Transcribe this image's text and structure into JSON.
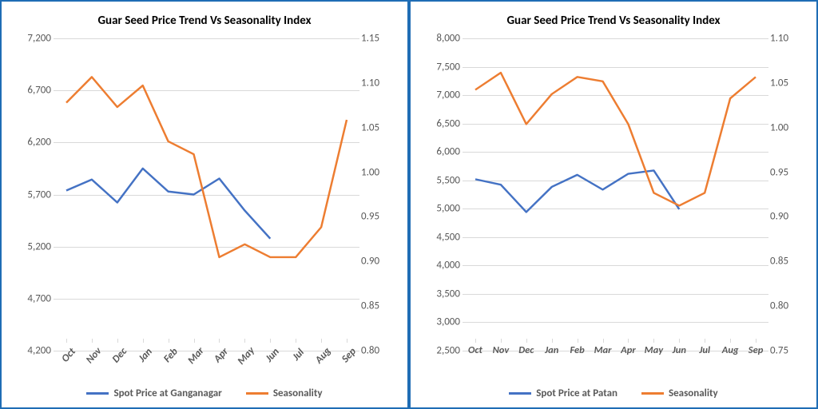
{
  "colors": {
    "price": "#4472c4",
    "seasonality": "#ed7d31",
    "grid": "#d9d9d9",
    "border": "#1f6db5",
    "text": "#595959"
  },
  "line_width": 2.5,
  "left": {
    "title": "Guar Seed Price Trend  Vs Seasonality Index",
    "categories": [
      "Oct",
      "Nov",
      "Dec",
      "Jan",
      "Feb",
      "Mar",
      "Apr",
      "May",
      "Jun",
      "Jul",
      "Aug",
      "Sep"
    ],
    "x_label_rotated": true,
    "y_left": {
      "min": 4200,
      "max": 7200,
      "step": 500,
      "fmt": "comma"
    },
    "y_right": {
      "min": 0.8,
      "max": 1.15,
      "step": 0.05,
      "fmt": "dec2"
    },
    "series": [
      {
        "name": "Spot Price at Ganganagar",
        "axis": "left",
        "color_key": "price",
        "values": [
          5680,
          5790,
          5560,
          5900,
          5670,
          5640,
          5800,
          5480,
          5200,
          null,
          null,
          null
        ]
      },
      {
        "name": "Seasonality",
        "axis": "right",
        "color_key": "seasonality",
        "values": [
          1.075,
          1.105,
          1.07,
          1.095,
          1.03,
          1.015,
          0.895,
          0.91,
          0.895,
          0.895,
          0.93,
          1.055
        ]
      }
    ]
  },
  "right": {
    "title": "Guar Seed Price Trend Vs Seasonality Index",
    "categories": [
      "Oct",
      "Nov",
      "Dec",
      "Jan",
      "Feb",
      "Mar",
      "Apr",
      "May",
      "Jun",
      "Jul",
      "Aug",
      "Sep"
    ],
    "x_label_rotated": false,
    "y_left": {
      "min": 2500,
      "max": 8000,
      "step": 500,
      "fmt": "comma"
    },
    "y_right": {
      "min": 0.75,
      "max": 1.1,
      "step": 0.05,
      "fmt": "dec2"
    },
    "series": [
      {
        "name": "Spot Price at Patan",
        "axis": "left",
        "color_key": "price",
        "values": [
          5420,
          5320,
          4820,
          5280,
          5500,
          5230,
          5520,
          5580,
          4870,
          null,
          null,
          null
        ]
      },
      {
        "name": "Seasonality",
        "axis": "right",
        "color_key": "seasonality",
        "values": [
          1.04,
          1.06,
          1.0,
          1.035,
          1.055,
          1.05,
          1.0,
          0.92,
          0.905,
          0.92,
          1.03,
          1.055
        ]
      }
    ]
  }
}
